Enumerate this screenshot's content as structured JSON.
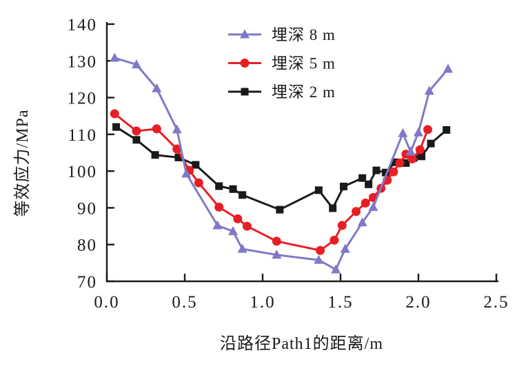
{
  "chart_data": {
    "type": "line",
    "title": "",
    "xlabel": "沿路径Path1的距离/m",
    "ylabel": "等效应力/MPa",
    "xlim": [
      0,
      2.5
    ],
    "ylim": [
      70,
      140
    ],
    "xticks": [
      0,
      0.5,
      1.0,
      1.5,
      2.0,
      2.5
    ],
    "xtick_labels": [
      "0.0",
      "0.5",
      "1.0",
      "1.5",
      "2.0",
      "2.5"
    ],
    "yticks": [
      70,
      80,
      90,
      100,
      110,
      120,
      130,
      140
    ],
    "ytick_labels": [
      "70",
      "80",
      "90",
      "100",
      "110",
      "120",
      "130",
      "140"
    ],
    "grid": false,
    "legend_position": "upper-center-inside",
    "axis_color": "#1a1a1a",
    "series": [
      {
        "name": "埋深 2 m",
        "marker": "square",
        "marker_icon": "square-marker-icon",
        "color": "#1a1a1a",
        "x": [
          0.06,
          0.19,
          0.31,
          0.46,
          0.57,
          0.72,
          0.81,
          0.87,
          1.11,
          1.36,
          1.45,
          1.52,
          1.64,
          1.68,
          1.73,
          1.79,
          1.85,
          1.92,
          1.97,
          2.02,
          2.08,
          2.18
        ],
        "y": [
          112.0,
          108.5,
          104.4,
          103.7,
          101.7,
          95.9,
          95.1,
          93.5,
          89.5,
          94.8,
          89.9,
          95.8,
          98.1,
          96.4,
          100.2,
          99.6,
          102.4,
          102.2,
          103.6,
          104.0,
          107.5,
          111.2
        ]
      },
      {
        "name": "埋深 5 m",
        "marker": "circle",
        "marker_icon": "circle-marker-icon",
        "color": "#e81e25",
        "x": [
          0.05,
          0.19,
          0.32,
          0.45,
          0.53,
          0.59,
          0.72,
          0.84,
          0.9,
          1.09,
          1.37,
          1.46,
          1.51,
          1.6,
          1.66,
          1.71,
          1.76,
          1.8,
          1.84,
          1.88,
          1.92,
          1.96,
          2.01,
          2.06
        ],
        "y": [
          115.6,
          110.9,
          111.5,
          106.0,
          100.2,
          96.8,
          90.2,
          87.0,
          85.0,
          80.9,
          78.4,
          81.2,
          85.2,
          89.0,
          91.3,
          92.8,
          95.3,
          97.5,
          99.8,
          102.2,
          104.6,
          103.3,
          105.8,
          111.3
        ]
      },
      {
        "name": "埋深 8 m",
        "marker": "triangle",
        "marker_icon": "triangle-marker-icon",
        "color": "#7f79c7",
        "x": [
          0.05,
          0.19,
          0.32,
          0.45,
          0.51,
          0.71,
          0.81,
          0.87,
          1.09,
          1.36,
          1.47,
          1.53,
          1.64,
          1.71,
          1.9,
          1.95,
          2.0,
          2.07,
          2.19
        ],
        "y": [
          130.8,
          129.0,
          122.5,
          111.3,
          99.3,
          85.2,
          83.6,
          78.8,
          77.2,
          75.8,
          73.2,
          78.8,
          86.0,
          90.2,
          110.3,
          105.3,
          110.5,
          121.8,
          127.8
        ]
      }
    ],
    "legend": [
      {
        "label": "埋深 8 m",
        "series": "埋深 8 m"
      },
      {
        "label": "埋深 5 m",
        "series": "埋深 5 m"
      },
      {
        "label": "埋深 2 m",
        "series": "埋深 2 m"
      }
    ]
  }
}
